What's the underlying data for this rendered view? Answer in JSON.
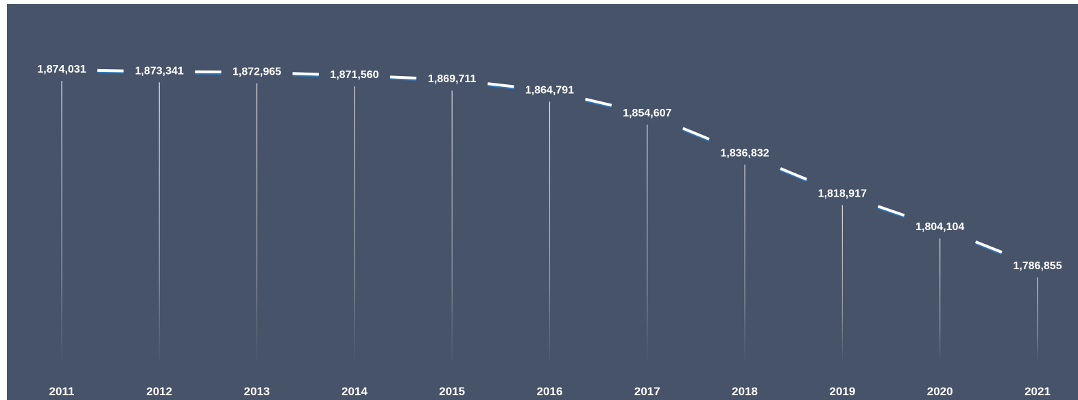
{
  "chart_data": {
    "type": "line",
    "categories": [
      "2011",
      "2012",
      "2013",
      "2014",
      "2015",
      "2016",
      "2017",
      "2018",
      "2019",
      "2020",
      "2021"
    ],
    "values": [
      1874031,
      1873341,
      1872965,
      1871560,
      1869711,
      1864791,
      1854607,
      1836832,
      1818917,
      1804104,
      1786855
    ],
    "value_labels": [
      "1,874,031",
      "1,873,341",
      "1,872,965",
      "1,871,560",
      "1,869,711",
      "1,864,791",
      "1,854,607",
      "1,836,832",
      "1,818,917",
      "1,804,104",
      "1,786,855"
    ],
    "title": "",
    "xlabel": "",
    "ylabel": "",
    "grid": false,
    "legend": "none",
    "drop_lines": true
  },
  "colors": {
    "background": "#465369",
    "line": "#ffffff",
    "line_shadow": "#2e75b6",
    "text": "#ffffff",
    "drop_line": "#d9d9d9"
  }
}
